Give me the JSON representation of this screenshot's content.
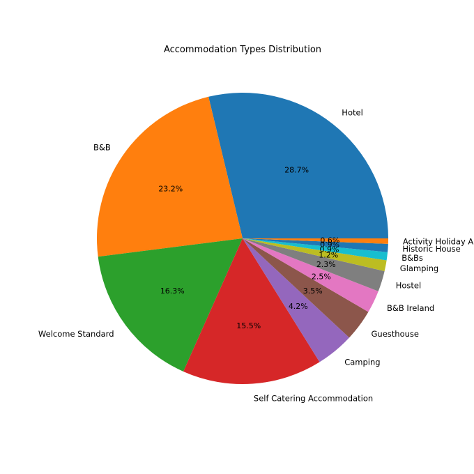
{
  "chart_data": {
    "type": "pie",
    "title": "Accommodation Types Distribution",
    "start_angle": "0 (counter-clockwise from 3 o'clock)",
    "slices": [
      {
        "label": "Hotel",
        "value": 28.7,
        "pct_label": "28.7%",
        "color": "#1f77b4"
      },
      {
        "label": "B&B",
        "value": 23.2,
        "pct_label": "23.2%",
        "color": "#ff7f0e"
      },
      {
        "label": "Welcome Standard",
        "value": 16.3,
        "pct_label": "16.3%",
        "color": "#2ca02c"
      },
      {
        "label": "Self Catering Accommodation",
        "value": 15.5,
        "pct_label": "15.5%",
        "color": "#d62728"
      },
      {
        "label": "Camping",
        "value": 4.2,
        "pct_label": "4.2%",
        "color": "#9467bd"
      },
      {
        "label": "Guesthouse",
        "value": 3.5,
        "pct_label": "3.5%",
        "color": "#8c564b"
      },
      {
        "label": "B&B Ireland",
        "value": 2.5,
        "pct_label": "2.5%",
        "color": "#e377c2"
      },
      {
        "label": "Hostel",
        "value": 2.3,
        "pct_label": "2.3%",
        "color": "#7f7f7f"
      },
      {
        "label": "Glamping",
        "value": 1.2,
        "pct_label": "1.2%",
        "color": "#bcbd22"
      },
      {
        "label": "B&Bs",
        "value": 0.9,
        "pct_label": "0.9%",
        "color": "#17becf"
      },
      {
        "label": "Historic House",
        "value": 0.9,
        "pct_label": "0.9%",
        "color": "#1f77b4"
      },
      {
        "label": "Activity Holiday A",
        "value": 0.6,
        "pct_label": "0.6%",
        "color": "#ff7f0e"
      }
    ]
  }
}
